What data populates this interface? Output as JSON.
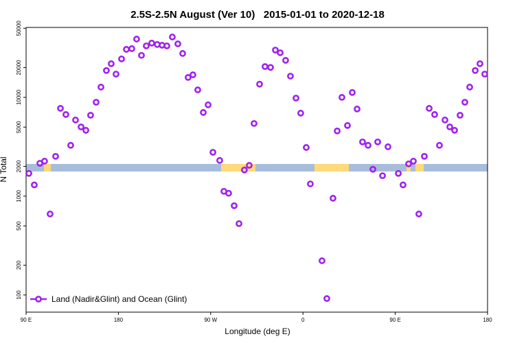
{
  "chart_data": {
    "type": "scatter",
    "title": "2.5S-2.5N August (Ver 10)   2015-01-01 to 2020-12-18",
    "x_label": "Longitude (deg E)",
    "y_label": "N Total",
    "log_scale": "y",
    "legend": "lower left",
    "xlim": [
      90,
      540
    ],
    "xticks": [
      {
        "value": 90,
        "label": "90 E"
      },
      180,
      {
        "value": 270,
        "label": "90 W"
      },
      {
        "value": 360,
        "label": "0"
      },
      {
        "value": 450,
        "label": "90 E"
      },
      {
        "value": 540,
        "label": "180"
      }
    ],
    "ylim": [
      67,
      51000
    ],
    "yticks": [
      100,
      200,
      500,
      1000,
      2000,
      5000,
      10000,
      20000,
      50000
    ],
    "series": [
      {
        "name": "Land (Nadir&Glint) and Ocean (Glint)",
        "color": "#a020f0",
        "x": [
          92.7,
          98,
          103.4,
          108,
          113.4,
          118.8,
          123.5,
          128.8,
          133.5,
          138.2,
          143.6,
          148.3,
          152.9,
          158.3,
          163,
          168.3,
          173,
          177.7,
          183.1,
          187.8,
          193.1,
          197.8,
          202.5,
          207.2,
          212.5,
          217.9,
          222.6,
          227.3,
          232.6,
          238,
          242.7,
          248,
          252.7,
          257.4,
          262.8,
          267.5,
          272.2,
          278.8,
          282.9,
          287.5,
          292.9,
          297.6,
          302.9,
          307.6,
          312.3,
          317.7,
          323,
          328.4,
          333.1,
          337.8,
          343.1,
          347.8,
          353.2,
          357.8,
          363.2,
          367.2,
          378.6,
          383.3,
          389.3,
          393.4,
          398,
          403.4,
          408.1,
          412.8,
          418.1,
          423.5,
          428.2,
          432.9,
          437.6,
          442.9,
          453,
          457.6,
          463,
          467.7,
          473,
          478.4,
          483.1,
          488.4,
          493.1,
          498.5,
          503.2,
          507.9,
          513.2,
          517.9,
          522.6,
          528,
          532.6,
          537.3
        ],
        "values": [
          1700,
          1300,
          2150,
          2260,
          660,
          2530,
          7740,
          6700,
          3270,
          5900,
          5020,
          4640,
          6590,
          8930,
          12700,
          18700,
          21900,
          17200,
          24500,
          30600,
          31100,
          38900,
          26600,
          33200,
          35400,
          34300,
          33700,
          33200,
          40800,
          34800,
          27800,
          15900,
          16900,
          11900,
          7030,
          8400,
          2780,
          2300,
          1120,
          1070,
          800,
          527,
          1840,
          2050,
          5440,
          13600,
          20500,
          20100,
          30100,
          28300,
          23700,
          16400,
          9830,
          6920,
          3110,
          1330,
          222,
          92,
          953,
          4570,
          10000,
          5190,
          11200,
          7620,
          3540,
          3270,
          1870,
          3540,
          1610,
          3160,
          1700,
          1300,
          2120,
          2260,
          660,
          2530,
          7740,
          6700,
          3270,
          5900,
          5020,
          4640,
          6590,
          8930,
          12700,
          18700,
          21900,
          17200
        ]
      }
    ]
  }
}
